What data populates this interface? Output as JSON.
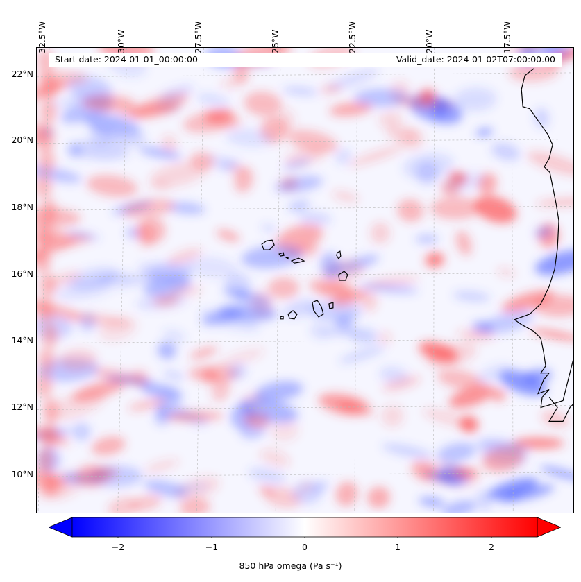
{
  "map": {
    "start_date": "Start date: 2024-01-01_00:00:00",
    "valid_date": "Valid_date: 2024-01-02T07:00:00.00",
    "longitude_labels": [
      "32.5°W",
      "30°W",
      "27.5°W",
      "25°W",
      "22.5°W",
      "20°W",
      "17.5°W"
    ],
    "latitude_labels": [
      "22°N",
      "20°N",
      "18°N",
      "16°N",
      "14°N",
      "12°N",
      "10°N"
    ],
    "variable": "850 hPa omega",
    "colors": {
      "negative": "#0000ff",
      "zero": "#ffffff",
      "positive": "#ff0000",
      "coastline": "#000000",
      "grid": "#b0b0b0"
    }
  },
  "colorbar": {
    "label": "850 hPa omega (Pa s⁻¹)",
    "ticks": [
      "−2",
      "−1",
      "0",
      "1",
      "2"
    ],
    "range": [
      -2.5,
      2.5
    ],
    "extend": "both"
  }
}
